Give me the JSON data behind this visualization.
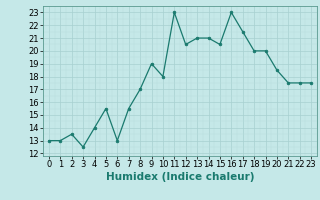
{
  "xlabel": "Humidex (Indice chaleur)",
  "x": [
    0,
    1,
    2,
    3,
    4,
    5,
    6,
    7,
    8,
    9,
    10,
    11,
    12,
    13,
    14,
    15,
    16,
    17,
    18,
    19,
    20,
    21,
    22,
    23
  ],
  "y": [
    13,
    13,
    13.5,
    12.5,
    14,
    15.5,
    13,
    15.5,
    17,
    19,
    18,
    23,
    20.5,
    21,
    21,
    20.5,
    23,
    21.5,
    20,
    20,
    18.5,
    17.5,
    17.5,
    17.5
  ],
  "ylim": [
    11.8,
    23.5
  ],
  "xlim": [
    -0.5,
    23.5
  ],
  "yticks": [
    12,
    13,
    14,
    15,
    16,
    17,
    18,
    19,
    20,
    21,
    22,
    23
  ],
  "xticks": [
    0,
    1,
    2,
    3,
    4,
    5,
    6,
    7,
    8,
    9,
    10,
    11,
    12,
    13,
    14,
    15,
    16,
    17,
    18,
    19,
    20,
    21,
    22,
    23
  ],
  "line_color": "#1a7a6e",
  "marker_color": "#1a7a6e",
  "bg_color": "#c5e8e8",
  "grid_major_color": "#a8d0d0",
  "grid_minor_color": "#b8dcdc",
  "tick_fontsize": 6,
  "label_fontsize": 7.5
}
